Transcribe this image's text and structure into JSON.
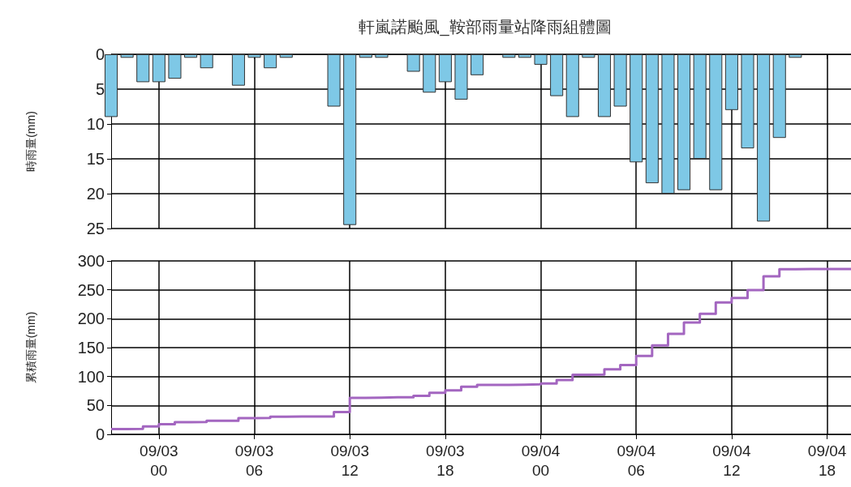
{
  "chart_data": [
    {
      "type": "bar",
      "title": "軒嵐諾颱風_鞍部雨量站降雨組體圖",
      "ylabel": "時雨量(mm)",
      "x": [
        "--09-02T21:00",
        "--09-02T22:00",
        "--09-02T23:00",
        "--09-03T00:00",
        "--09-03T01:00",
        "--09-03T02:00",
        "--09-03T03:00",
        "--09-03T05:00",
        "--09-03T06:00",
        "--09-03T07:00",
        "--09-03T08:00",
        "--09-03T11:00",
        "--09-03T12:00",
        "--09-03T13:00",
        "--09-03T14:00",
        "--09-03T16:00",
        "--09-03T17:00",
        "--09-03T18:00",
        "--09-03T19:00",
        "--09-03T20:00",
        "--09-03T22:00",
        "--09-03T23:00",
        "--09-04T00:00",
        "--09-04T01:00",
        "--09-04T02:00",
        "--09-04T03:00",
        "--09-04T04:00",
        "--09-04T05:00",
        "--09-04T06:00",
        "--09-04T07:00",
        "--09-04T08:00",
        "--09-04T09:00",
        "--09-04T10:00",
        "--09-04T11:00",
        "--09-04T12:00",
        "--09-04T13:00",
        "--09-04T14:00",
        "--09-04T15:00",
        "--09-04T16:00"
      ],
      "values": [
        9,
        0.5,
        4,
        4,
        3.5,
        0.5,
        2,
        4.5,
        0.5,
        2,
        0.5,
        7.5,
        24.5,
        0.5,
        0.5,
        2.5,
        5.5,
        4,
        6.5,
        3,
        0.5,
        0.5,
        1.5,
        6,
        9,
        0.5,
        9,
        7.5,
        15.5,
        18.5,
        20,
        19.5,
        15,
        19.5,
        8,
        13.5,
        24,
        12,
        0.5
      ],
      "color": "#7ec8e6",
      "xlim": [
        "--09-02T21:00",
        "--09-04T19:30"
      ],
      "xticks": [
        {
          "value": "--09-03T00:00",
          "label": "09/03\n00"
        },
        {
          "value": "--09-03T06:00",
          "label": "09/03\n06"
        },
        {
          "value": "--09-03T12:00",
          "label": "09/03\n12"
        },
        {
          "value": "--09-03T18:00",
          "label": "09/03\n18"
        },
        {
          "value": "--09-04T00:00",
          "label": "09/04\n00"
        },
        {
          "value": "--09-04T06:00",
          "label": "09/04\n06"
        },
        {
          "value": "--09-04T12:00",
          "label": "09/04\n12"
        },
        {
          "value": "--09-04T18:00",
          "label": "09/04\n18"
        }
      ],
      "ylim": [
        25,
        0
      ],
      "yticks": [
        0,
        5,
        10,
        15,
        20,
        25
      ],
      "grid": true,
      "tick_labels": "y"
    },
    {
      "type": "step",
      "ylabel": "累積雨量(mm)",
      "x": [
        "--09-02T21:00",
        "--09-02T22:00",
        "--09-02T23:00",
        "--09-03T00:00",
        "--09-03T01:00",
        "--09-03T02:00",
        "--09-03T03:00",
        "--09-03T04:00",
        "--09-03T05:00",
        "--09-03T06:00",
        "--09-03T07:00",
        "--09-03T08:00",
        "--09-03T09:00",
        "--09-03T10:00",
        "--09-03T11:00",
        "--09-03T12:00",
        "--09-03T13:00",
        "--09-03T14:00",
        "--09-03T15:00",
        "--09-03T16:00",
        "--09-03T17:00",
        "--09-03T18:00",
        "--09-03T19:00",
        "--09-03T20:00",
        "--09-03T21:00",
        "--09-03T22:00",
        "--09-03T23:00",
        "--09-04T00:00",
        "--09-04T01:00",
        "--09-04T02:00",
        "--09-04T03:00",
        "--09-04T04:00",
        "--09-04T05:00",
        "--09-04T06:00",
        "--09-04T07:00",
        "--09-04T08:00",
        "--09-04T09:00",
        "--09-04T10:00",
        "--09-04T11:00",
        "--09-04T12:00",
        "--09-04T13:00",
        "--09-04T14:00",
        "--09-04T15:00",
        "--09-04T16:00",
        "--09-04T17:00",
        "--09-04T18:00",
        "--09-04T19:00",
        "--09-04T19:30"
      ],
      "values": [
        9,
        9.5,
        13.5,
        17.5,
        21,
        21.5,
        23.5,
        23.5,
        28,
        28.5,
        30.5,
        31,
        31,
        31,
        38.5,
        63,
        63.5,
        64,
        64,
        66.5,
        72,
        76,
        82.5,
        85.5,
        85.5,
        86,
        86.5,
        88,
        94,
        103,
        103.5,
        112.5,
        120,
        135.5,
        154,
        174,
        193.5,
        208.5,
        228,
        236,
        249.5,
        273.5,
        285.5,
        286,
        286,
        286,
        286,
        286
      ],
      "color": "#a366c0",
      "xlim": [
        "--09-02T21:00",
        "--09-04T19:30"
      ],
      "xticks": [
        {
          "value": "--09-03T00:00",
          "label": "09/03\n00"
        },
        {
          "value": "--09-03T06:00",
          "label": "09/03\n06"
        },
        {
          "value": "--09-03T12:00",
          "label": "09/03\n12"
        },
        {
          "value": "--09-03T18:00",
          "label": "09/03\n18"
        },
        {
          "value": "--09-04T00:00",
          "label": "09/04\n00"
        },
        {
          "value": "--09-04T06:00",
          "label": "09/04\n06"
        },
        {
          "value": "--09-04T12:00",
          "label": "09/04\n12"
        },
        {
          "value": "--09-04T18:00",
          "label": "09/04\n18"
        }
      ],
      "ylim": [
        0,
        300
      ],
      "yticks": [
        0,
        50,
        100,
        150,
        200,
        250,
        300
      ],
      "grid": true,
      "marker": "none",
      "line_style": "solid"
    }
  ]
}
